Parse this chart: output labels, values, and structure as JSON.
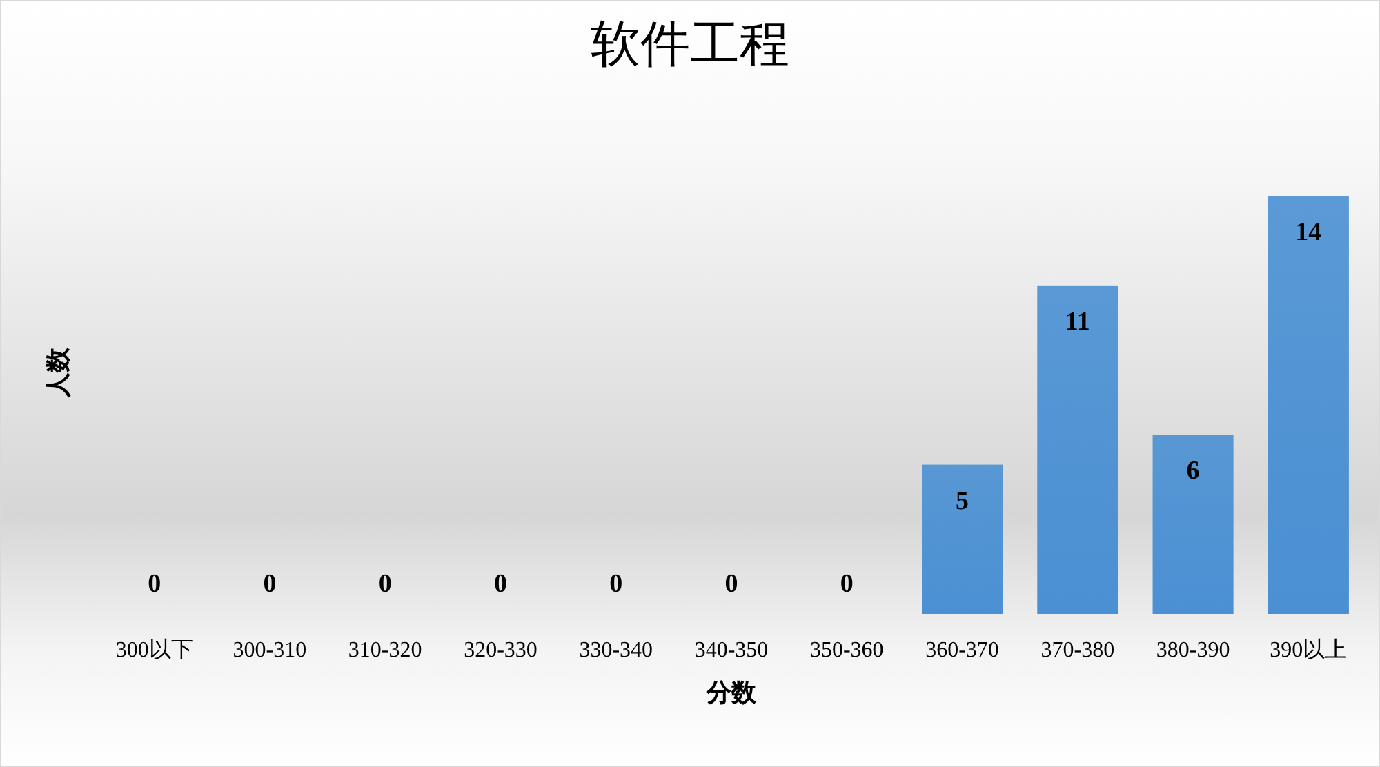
{
  "chart_data": {
    "type": "bar",
    "title": "软件工程",
    "xlabel": "分数",
    "ylabel": "人数",
    "categories": [
      "300以下",
      "300-310",
      "310-320",
      "320-330",
      "330-340",
      "340-350",
      "350-360",
      "360-370",
      "370-380",
      "380-390",
      "390以上"
    ],
    "values": [
      0,
      0,
      0,
      0,
      0,
      0,
      0,
      5,
      11,
      6,
      14
    ],
    "color": "#4a90d3",
    "data_labels": true
  }
}
